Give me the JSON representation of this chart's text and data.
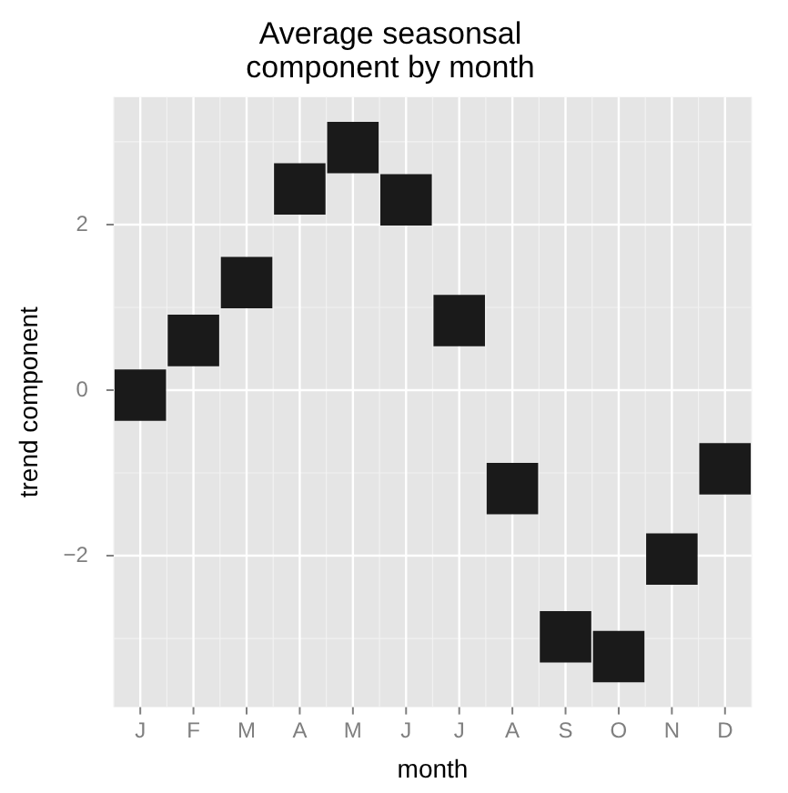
{
  "chart_data": {
    "type": "scatter",
    "title": "Average seasonsal component by month",
    "xlabel": "month",
    "ylabel": "trend component",
    "categories": [
      "J",
      "F",
      "M",
      "A",
      "M",
      "J",
      "J",
      "A",
      "S",
      "O",
      "N",
      "D"
    ],
    "series": [
      {
        "color": "#1a1a1a",
        "values": [
          -0.06,
          0.6,
          1.3,
          2.43,
          2.93,
          2.3,
          0.84,
          -1.19,
          -2.98,
          -3.22,
          -2.04,
          -0.95
        ]
      }
    ],
    "ylim": [
      -3.83,
      3.54
    ],
    "yticks": [
      -2,
      0,
      2
    ],
    "grid": true,
    "marker": "square",
    "legend": false
  }
}
